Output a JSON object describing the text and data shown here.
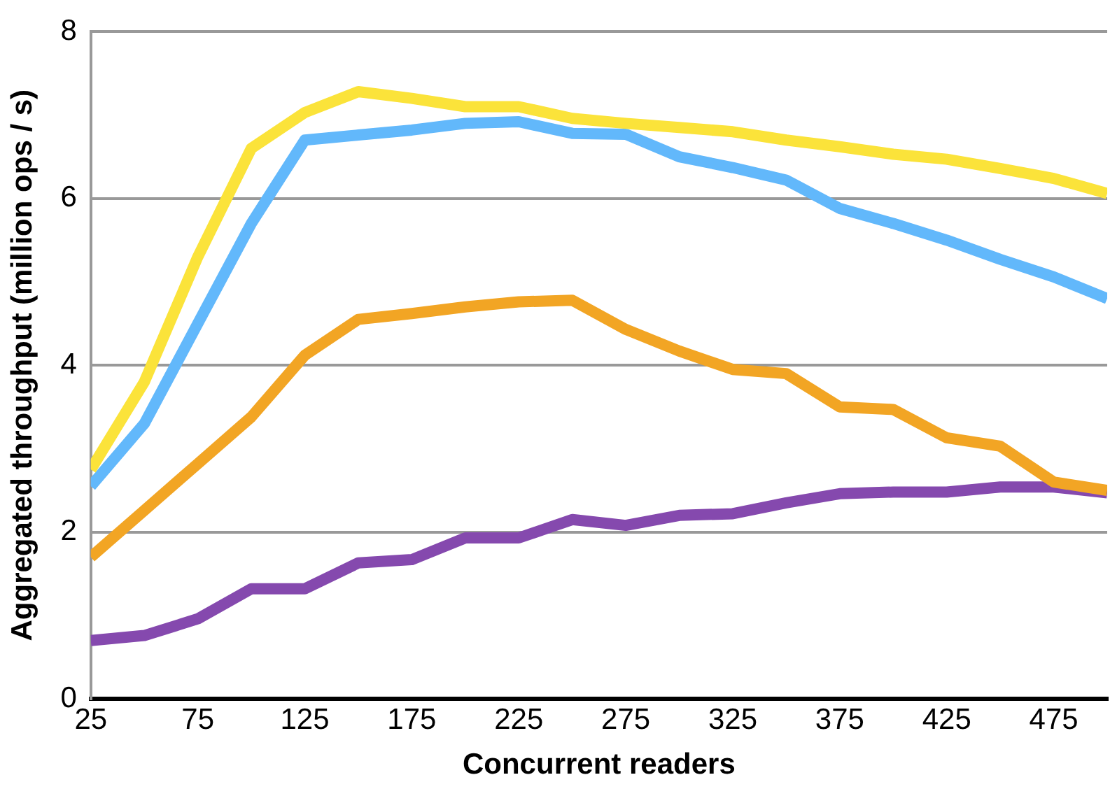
{
  "chart_data": {
    "type": "line",
    "xlabel": "Concurrent readers",
    "ylabel": "Aggregated throughput (million ops / s)",
    "x": [
      25,
      50,
      75,
      100,
      125,
      150,
      175,
      200,
      225,
      250,
      275,
      300,
      325,
      350,
      375,
      400,
      425,
      450,
      475,
      500
    ],
    "series": [
      {
        "color": "#fbe33a",
        "values": [
          2.75,
          3.8,
          5.3,
          6.6,
          7.03,
          7.28,
          7.2,
          7.1,
          7.1,
          6.96,
          6.9,
          6.85,
          6.8,
          6.7,
          6.62,
          6.53,
          6.47,
          6.36,
          6.24,
          6.06
        ]
      },
      {
        "color": "#62b8fb",
        "values": [
          2.55,
          3.3,
          4.5,
          5.7,
          6.7,
          6.76,
          6.82,
          6.9,
          6.92,
          6.78,
          6.77,
          6.5,
          6.37,
          6.22,
          5.88,
          5.7,
          5.5,
          5.27,
          5.06,
          4.8
        ]
      },
      {
        "color": "#f2a524",
        "values": [
          1.7,
          2.26,
          2.82,
          3.38,
          4.12,
          4.55,
          4.62,
          4.7,
          4.76,
          4.78,
          4.43,
          4.17,
          3.95,
          3.9,
          3.5,
          3.47,
          3.13,
          3.03,
          2.6,
          2.5
        ]
      },
      {
        "color": "#8549ae",
        "values": [
          0.7,
          0.76,
          0.96,
          1.32,
          1.32,
          1.63,
          1.67,
          1.93,
          1.93,
          2.15,
          2.08,
          2.2,
          2.22,
          2.35,
          2.46,
          2.48,
          2.48,
          2.54,
          2.54,
          2.47
        ]
      }
    ],
    "xlim": [
      25,
      500
    ],
    "xticks": [
      25,
      75,
      125,
      175,
      225,
      275,
      325,
      375,
      425,
      475
    ],
    "ylim": [
      0,
      8
    ],
    "yticks": [
      0,
      2,
      4,
      6,
      8
    ],
    "grid": "y",
    "legend": false,
    "marker": "none",
    "line_style": "solid"
  }
}
